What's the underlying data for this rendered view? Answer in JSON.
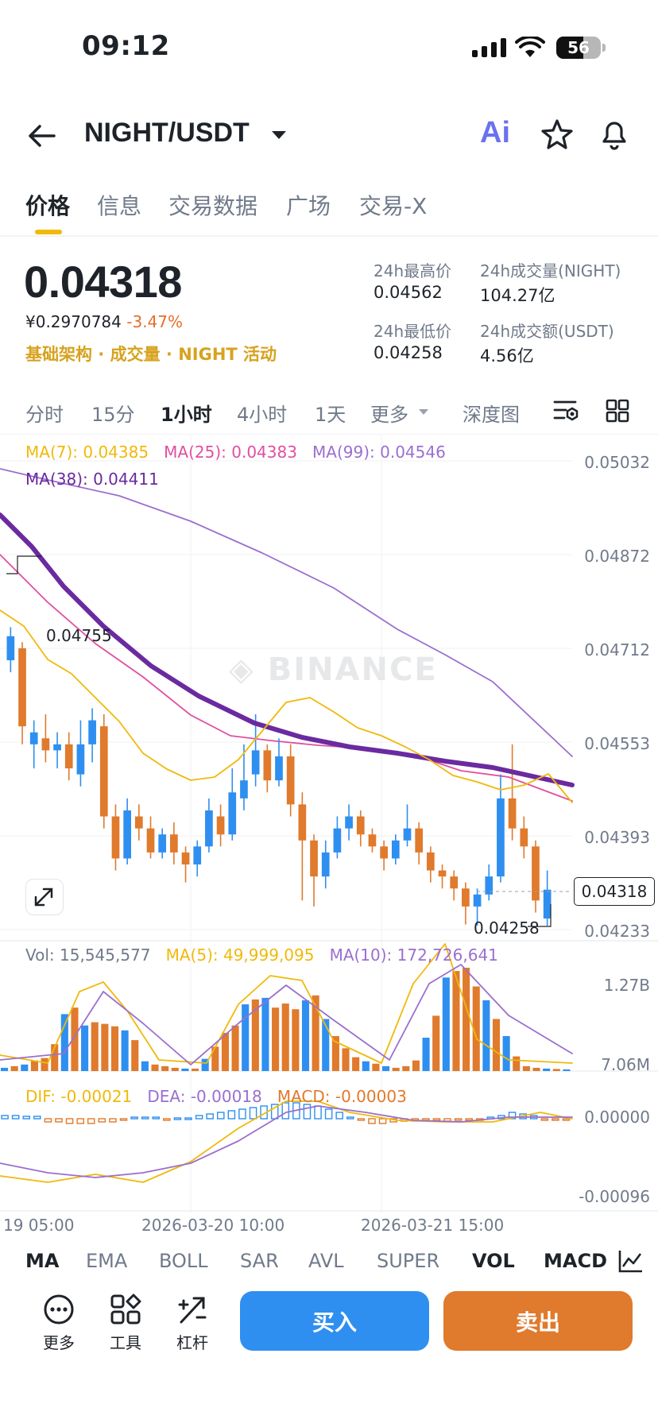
{
  "status_bar": {
    "time": "09:12",
    "battery": "56"
  },
  "header": {
    "pair": "NIGHT/USDT",
    "ai_label": "Ai"
  },
  "tabs": [
    "价格",
    "信息",
    "交易数据",
    "广场",
    "交易-X"
  ],
  "ticker": {
    "last_price": "0.04318",
    "cny_price": "¥0.2970784",
    "change_pct": "-3.47%",
    "tags": "基础架构 · 成交量 · NIGHT 活动",
    "high_label": "24h最高价",
    "high_value": "0.04562",
    "vol_label": "24h成交量(NIGHT)",
    "vol_value": "104.27亿",
    "low_label": "24h最低价",
    "low_value": "0.04258",
    "turnover_label": "24h成交额(USDT)",
    "turnover_value": "4.56亿"
  },
  "intervals": [
    "分时",
    "15分",
    "1小时",
    "4小时",
    "1天",
    "更多",
    "深度图"
  ],
  "active_interval": "1小时",
  "ma_legend": {
    "ma7": "MA(7): 0.04385",
    "ma25": "MA(25): 0.04383",
    "ma99": "MA(99): 0.04546",
    "ma38": "MA(38): 0.04411"
  },
  "watermark": "BINANCE",
  "price_axis": [
    "0.05032",
    "0.04872",
    "0.04712",
    "0.04553",
    "0.04393",
    "0.04233"
  ],
  "high_marker": "0.04755",
  "low_marker": "0.04258",
  "current_marker": "0.04318",
  "volume_legend": {
    "vol": "Vol: 15,545,577",
    "ma5": "MA(5): 49,999,095",
    "ma10": "MA(10): 172,726,641"
  },
  "volume_axis": [
    "1.27B",
    "7.06M"
  ],
  "macd_legend": {
    "dif": "DIF: -0.00021",
    "dea": "DEA: -0.00018",
    "macd": "MACD: -0.00003"
  },
  "macd_axis": [
    "0.00000",
    "-0.00096"
  ],
  "time_axis": [
    "19 05:00",
    "2026-03-20 10:00",
    "2026-03-21 15:00"
  ],
  "indicators": [
    "MA",
    "EMA",
    "BOLL",
    "SAR",
    "AVL",
    "SUPER",
    "VOL",
    "MACD"
  ],
  "active_indicators": [
    "MA",
    "VOL",
    "MACD"
  ],
  "toolbar": {
    "more": "更多",
    "tools": "工具",
    "leverage": "杠杆",
    "buy": "买入",
    "sell": "卖出"
  },
  "colors": {
    "up": "#2e8ff0",
    "down": "#e07a2c",
    "ma7": "#f0b90b",
    "ma25": "#e14fa0",
    "ma99": "#9a6fcf",
    "ma38": "#6a2aa0",
    "buy": "#2e8ff0",
    "sell": "#e07a2c",
    "accent": "#f0b90b"
  },
  "chart_data": {
    "type": "candlestick",
    "price_range": [
      0.04233,
      0.05032
    ],
    "candles": [
      {
        "o": 0.047,
        "c": 0.0474,
        "h": 0.04755,
        "l": 0.0468
      },
      {
        "o": 0.0472,
        "c": 0.0459,
        "h": 0.0473,
        "l": 0.0456
      },
      {
        "o": 0.0456,
        "c": 0.0458,
        "h": 0.046,
        "l": 0.0452
      },
      {
        "o": 0.0457,
        "c": 0.0455,
        "h": 0.0461,
        "l": 0.0453
      },
      {
        "o": 0.0455,
        "c": 0.0456,
        "h": 0.0458,
        "l": 0.0452
      },
      {
        "o": 0.0456,
        "c": 0.0452,
        "h": 0.0458,
        "l": 0.045
      },
      {
        "o": 0.0451,
        "c": 0.0456,
        "h": 0.046,
        "l": 0.0449
      },
      {
        "o": 0.0456,
        "c": 0.046,
        "h": 0.0462,
        "l": 0.0453
      },
      {
        "o": 0.0459,
        "c": 0.0444,
        "h": 0.0461,
        "l": 0.0442
      },
      {
        "o": 0.0444,
        "c": 0.0437,
        "h": 0.0446,
        "l": 0.0435
      },
      {
        "o": 0.0437,
        "c": 0.0445,
        "h": 0.0447,
        "l": 0.0436
      },
      {
        "o": 0.0444,
        "c": 0.0442,
        "h": 0.0446,
        "l": 0.044
      },
      {
        "o": 0.0442,
        "c": 0.0438,
        "h": 0.0444,
        "l": 0.0437
      },
      {
        "o": 0.0438,
        "c": 0.0441,
        "h": 0.0442,
        "l": 0.0437
      },
      {
        "o": 0.0441,
        "c": 0.0438,
        "h": 0.0443,
        "l": 0.0436
      },
      {
        "o": 0.0438,
        "c": 0.0436,
        "h": 0.0439,
        "l": 0.0433
      },
      {
        "o": 0.0436,
        "c": 0.0439,
        "h": 0.044,
        "l": 0.0434
      },
      {
        "o": 0.0439,
        "c": 0.0445,
        "h": 0.0447,
        "l": 0.0438
      },
      {
        "o": 0.0444,
        "c": 0.0441,
        "h": 0.0446,
        "l": 0.0439
      },
      {
        "o": 0.0441,
        "c": 0.0448,
        "h": 0.0452,
        "l": 0.044
      },
      {
        "o": 0.0447,
        "c": 0.045,
        "h": 0.0456,
        "l": 0.0445
      },
      {
        "o": 0.0451,
        "c": 0.0455,
        "h": 0.0461,
        "l": 0.0449
      },
      {
        "o": 0.0455,
        "c": 0.045,
        "h": 0.0456,
        "l": 0.0448
      },
      {
        "o": 0.045,
        "c": 0.0454,
        "h": 0.0457,
        "l": 0.0449
      },
      {
        "o": 0.0454,
        "c": 0.0446,
        "h": 0.0456,
        "l": 0.0444
      },
      {
        "o": 0.0446,
        "c": 0.044,
        "h": 0.0448,
        "l": 0.043
      },
      {
        "o": 0.044,
        "c": 0.0434,
        "h": 0.0441,
        "l": 0.0429
      },
      {
        "o": 0.0434,
        "c": 0.0438,
        "h": 0.044,
        "l": 0.0432
      },
      {
        "o": 0.0438,
        "c": 0.0442,
        "h": 0.0444,
        "l": 0.0437
      },
      {
        "o": 0.0442,
        "c": 0.0444,
        "h": 0.0446,
        "l": 0.044
      },
      {
        "o": 0.0444,
        "c": 0.0441,
        "h": 0.0445,
        "l": 0.0439
      },
      {
        "o": 0.0441,
        "c": 0.0439,
        "h": 0.0442,
        "l": 0.0438
      },
      {
        "o": 0.0439,
        "c": 0.0437,
        "h": 0.044,
        "l": 0.0435
      },
      {
        "o": 0.0437,
        "c": 0.044,
        "h": 0.0441,
        "l": 0.0436
      },
      {
        "o": 0.044,
        "c": 0.0442,
        "h": 0.0446,
        "l": 0.0439
      },
      {
        "o": 0.0442,
        "c": 0.0438,
        "h": 0.0443,
        "l": 0.0436
      },
      {
        "o": 0.0438,
        "c": 0.0435,
        "h": 0.0439,
        "l": 0.0433
      },
      {
        "o": 0.0435,
        "c": 0.0434,
        "h": 0.0436,
        "l": 0.0432
      },
      {
        "o": 0.0434,
        "c": 0.0432,
        "h": 0.0435,
        "l": 0.043
      },
      {
        "o": 0.0432,
        "c": 0.0429,
        "h": 0.0433,
        "l": 0.0426
      },
      {
        "o": 0.0429,
        "c": 0.0431,
        "h": 0.0432,
        "l": 0.04258
      },
      {
        "o": 0.0431,
        "c": 0.0434,
        "h": 0.0436,
        "l": 0.043
      },
      {
        "o": 0.0434,
        "c": 0.0447,
        "h": 0.0451,
        "l": 0.0433
      },
      {
        "o": 0.0447,
        "c": 0.0442,
        "h": 0.0456,
        "l": 0.044
      },
      {
        "o": 0.0442,
        "c": 0.0439,
        "h": 0.0444,
        "l": 0.0437
      },
      {
        "o": 0.0439,
        "c": 0.043,
        "h": 0.044,
        "l": 0.0428
      },
      {
        "o": 0.0427,
        "c": 0.04318,
        "h": 0.0435,
        "l": 0.04258
      }
    ],
    "volume_range": [
      0,
      1270000000
    ],
    "macd_range": [
      -0.00096,
      0.0002
    ]
  }
}
